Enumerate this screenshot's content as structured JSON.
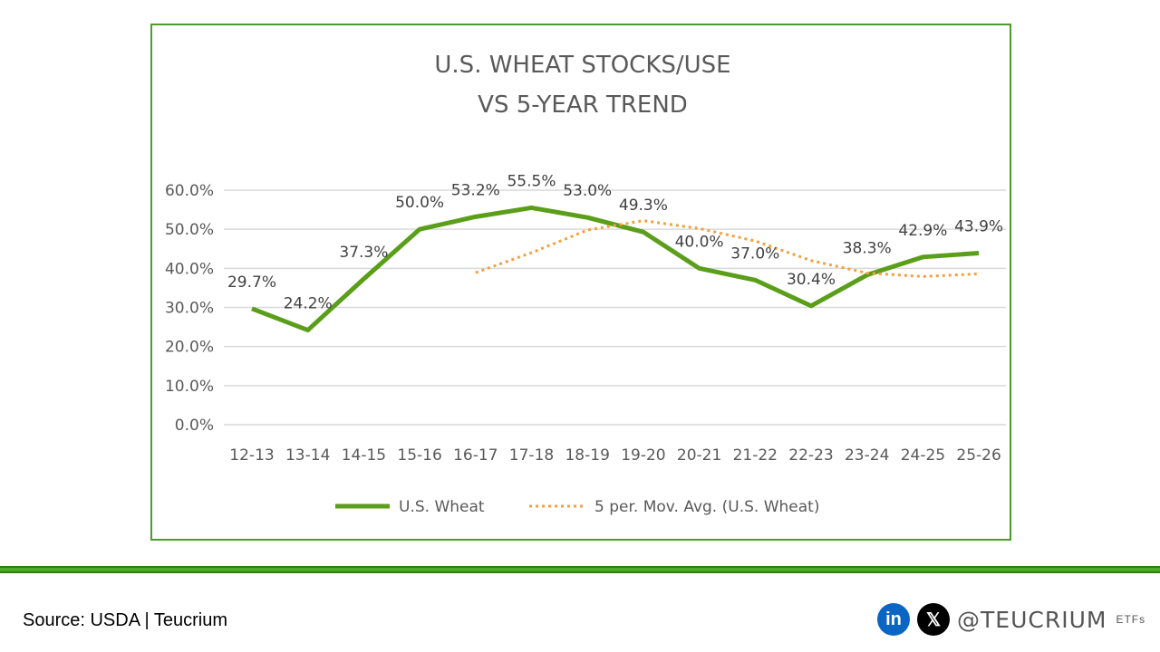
{
  "chart_data": {
    "type": "line",
    "title": [
      "U.S. WHEAT STOCKS/USE",
      "VS 5-YEAR TREND"
    ],
    "categories": [
      "12-13",
      "13-14",
      "14-15",
      "15-16",
      "16-17",
      "17-18",
      "18-19",
      "19-20",
      "20-21",
      "21-22",
      "22-23",
      "23-24",
      "24-25",
      "25-26"
    ],
    "series": [
      {
        "name": "U.S. Wheat",
        "color": "#5a9e1a",
        "style": "solid",
        "values": [
          29.7,
          24.2,
          37.3,
          50.0,
          53.2,
          55.5,
          53.0,
          49.3,
          40.0,
          37.0,
          30.4,
          38.3,
          42.9,
          43.9
        ],
        "labels": [
          "29.7%",
          "24.2%",
          "37.3%",
          "50.0%",
          "53.2%",
          "55.5%",
          "53.0%",
          "49.3%",
          "40.0%",
          "37.0%",
          "30.4%",
          "38.3%",
          "42.9%",
          "43.9%"
        ]
      },
      {
        "name": "5 per. Mov. Avg. (U.S. Wheat)",
        "color": "#f5a03c",
        "style": "dotted",
        "values": [
          null,
          null,
          null,
          null,
          38.9,
          44.0,
          49.8,
          52.2,
          50.2,
          47.0,
          42.0,
          38.8,
          37.9,
          38.6
        ]
      }
    ],
    "yticks": [
      "0.0%",
      "10.0%",
      "20.0%",
      "30.0%",
      "40.0%",
      "50.0%",
      "60.0%"
    ],
    "ylim": [
      0,
      60
    ],
    "grid": true,
    "legend": "bottom"
  },
  "footer": {
    "source": "Source: USDA | Teucrium",
    "linkedin": "in",
    "x": "𝕏",
    "handle": "@TEUCRIUM",
    "etfs": "ETFs"
  }
}
